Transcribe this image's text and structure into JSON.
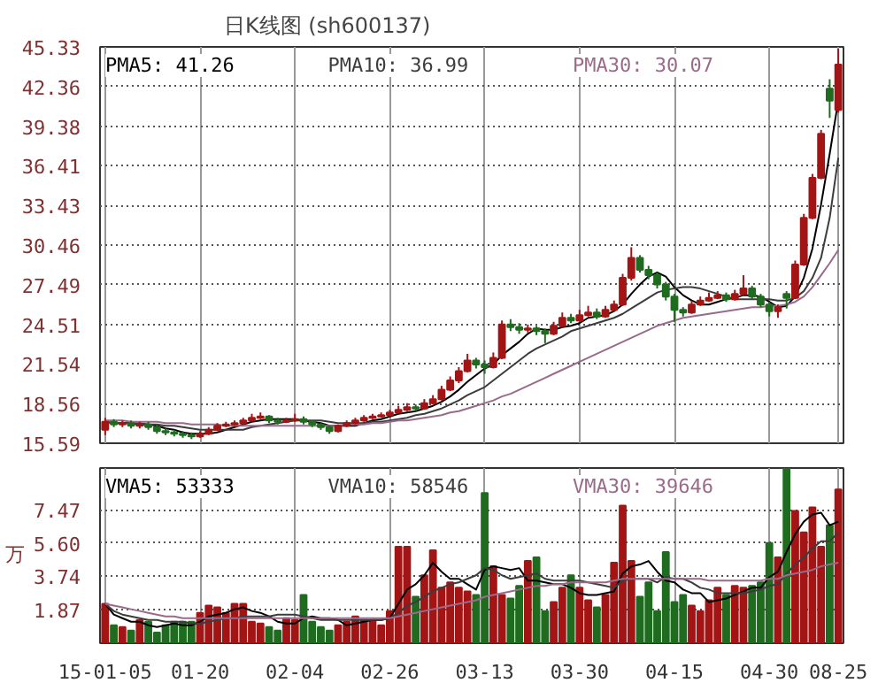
{
  "chart_data": [
    {
      "type": "candlestick",
      "title": "日K线图 (sh600137)",
      "tick_labels": "y",
      "grid": true,
      "categories": [
        null,
        null,
        null,
        null,
        null,
        null,
        null,
        null,
        null,
        null,
        null,
        null,
        null,
        null,
        null,
        null,
        null,
        null,
        null,
        null,
        null,
        null,
        null,
        null,
        null,
        null,
        null,
        null,
        null,
        null,
        null,
        null,
        null,
        null,
        null,
        null,
        null,
        null,
        null,
        null,
        null,
        null,
        null,
        null,
        null,
        null,
        null,
        null,
        null,
        null,
        null,
        null,
        null,
        null,
        null,
        null,
        null,
        null,
        null,
        null,
        null,
        null,
        null,
        null,
        null,
        null,
        null,
        null,
        null,
        null,
        null,
        null,
        null,
        null,
        null,
        null,
        null,
        null,
        null,
        null,
        null,
        null,
        null,
        null,
        null,
        null
      ],
      "ylim": [
        15.59,
        45.33
      ],
      "yticks": [
        15.59,
        18.56,
        21.54,
        24.51,
        27.49,
        {
          "value": 30.46,
          "label": "30.46"
        },
        33.43,
        36.41,
        39.38,
        42.36,
        45.33
      ],
      "annotations": [
        "PMA5: 41.26",
        "PMA10: 36.99",
        "PMA30: 30.07"
      ],
      "ohlc": [
        [
          16.6,
          17.5,
          16.2,
          17.2
        ],
        [
          17.2,
          17.4,
          16.8,
          17.0
        ],
        [
          17.0,
          17.3,
          16.8,
          17.1
        ],
        [
          17.1,
          17.3,
          16.7,
          16.9
        ],
        [
          16.9,
          17.2,
          16.7,
          17.0
        ],
        [
          17.0,
          17.2,
          16.6,
          16.8
        ],
        [
          16.8,
          17.0,
          16.3,
          16.5
        ],
        [
          16.5,
          16.7,
          16.2,
          16.4
        ],
        [
          16.4,
          16.6,
          16.1,
          16.3
        ],
        [
          16.3,
          16.5,
          16.0,
          16.2
        ],
        [
          16.2,
          16.4,
          15.9,
          16.1
        ],
        [
          16.1,
          16.5,
          16.0,
          16.3
        ],
        [
          16.3,
          16.8,
          16.2,
          16.6
        ],
        [
          16.6,
          17.1,
          16.5,
          16.9
        ],
        [
          16.9,
          17.2,
          16.8,
          17.0
        ],
        [
          17.0,
          17.3,
          16.9,
          17.1
        ],
        [
          17.1,
          17.5,
          17.0,
          17.3
        ],
        [
          17.3,
          17.8,
          17.2,
          17.5
        ],
        [
          17.5,
          17.9,
          17.4,
          17.6
        ],
        [
          17.6,
          17.7,
          17.1,
          17.3
        ],
        [
          17.3,
          17.5,
          17.0,
          17.2
        ],
        [
          17.2,
          17.5,
          17.1,
          17.3
        ],
        [
          17.3,
          17.8,
          17.2,
          17.4
        ],
        [
          17.4,
          17.6,
          17.0,
          17.2
        ],
        [
          17.2,
          17.3,
          16.8,
          17.0
        ],
        [
          17.0,
          17.1,
          16.6,
          16.8
        ],
        [
          16.8,
          16.9,
          16.3,
          16.5
        ],
        [
          16.5,
          17.0,
          16.4,
          16.9
        ],
        [
          16.9,
          17.3,
          16.8,
          17.1
        ],
        [
          17.1,
          17.5,
          17.0,
          17.3
        ],
        [
          17.3,
          17.7,
          17.2,
          17.5
        ],
        [
          17.5,
          17.8,
          17.4,
          17.6
        ],
        [
          17.6,
          17.9,
          17.5,
          17.7
        ],
        [
          17.7,
          18.1,
          17.6,
          17.9
        ],
        [
          17.9,
          18.4,
          17.8,
          18.1
        ],
        [
          18.1,
          18.6,
          18.0,
          18.3
        ],
        [
          18.3,
          18.5,
          18.0,
          18.2
        ],
        [
          18.2,
          18.9,
          18.1,
          18.6
        ],
        [
          18.6,
          19.2,
          18.5,
          18.9
        ],
        [
          18.9,
          19.9,
          18.8,
          19.6
        ],
        [
          19.6,
          20.6,
          19.5,
          20.3
        ],
        [
          20.3,
          21.3,
          20.1,
          21.0
        ],
        [
          21.0,
          22.3,
          20.9,
          21.8
        ],
        [
          21.8,
          22.0,
          21.2,
          21.5
        ],
        [
          21.5,
          21.8,
          20.8,
          21.3
        ],
        [
          21.3,
          22.4,
          21.2,
          22.0
        ],
        [
          22.0,
          24.8,
          21.9,
          24.5
        ],
        [
          24.5,
          24.9,
          24.0,
          24.3
        ],
        [
          24.3,
          24.6,
          23.8,
          24.1
        ],
        [
          24.1,
          24.5,
          23.9,
          24.2
        ],
        [
          24.2,
          24.4,
          23.7,
          24.0
        ],
        [
          24.0,
          24.2,
          23.1,
          23.8
        ],
        [
          23.8,
          24.7,
          23.7,
          24.4
        ],
        [
          24.4,
          25.4,
          24.3,
          25.0
        ],
        [
          25.0,
          25.3,
          24.6,
          24.8
        ],
        [
          24.8,
          25.6,
          24.7,
          25.2
        ],
        [
          25.2,
          25.9,
          25.1,
          25.4
        ],
        [
          25.4,
          25.7,
          24.9,
          25.1
        ],
        [
          25.1,
          25.9,
          25.0,
          25.6
        ],
        [
          25.6,
          26.3,
          25.5,
          26.0
        ],
        [
          26.0,
          28.3,
          25.9,
          28.0
        ],
        [
          28.0,
          30.3,
          27.8,
          29.5
        ],
        [
          29.5,
          29.7,
          28.4,
          28.6
        ],
        [
          28.6,
          28.9,
          27.9,
          28.2
        ],
        [
          28.2,
          28.4,
          27.2,
          27.5
        ],
        [
          27.5,
          27.7,
          26.3,
          26.6
        ],
        [
          26.6,
          26.8,
          24.7,
          25.6
        ],
        [
          25.6,
          25.8,
          25.1,
          25.4
        ],
        [
          25.4,
          26.3,
          25.3,
          26.0
        ],
        [
          26.0,
          26.6,
          25.9,
          26.3
        ],
        [
          26.3,
          26.9,
          26.2,
          26.5
        ],
        [
          26.5,
          27.0,
          26.4,
          26.7
        ],
        [
          26.7,
          26.9,
          26.2,
          26.4
        ],
        [
          26.4,
          27.1,
          26.3,
          26.8
        ],
        [
          26.8,
          28.2,
          26.7,
          27.2
        ],
        [
          27.2,
          27.4,
          26.4,
          26.6
        ],
        [
          26.6,
          26.8,
          25.8,
          26.0
        ],
        [
          26.0,
          26.2,
          25.1,
          25.5
        ],
        [
          25.5,
          26.0,
          25.0,
          25.8
        ],
        [
          26.8,
          27.0,
          25.7,
          26.5
        ],
        [
          26.5,
          29.3,
          26.4,
          29.0
        ],
        [
          29.0,
          32.8,
          28.9,
          32.5
        ],
        [
          32.5,
          35.8,
          32.4,
          35.5
        ],
        [
          35.5,
          39.1,
          35.4,
          38.8
        ],
        [
          42.2,
          42.9,
          40.0,
          41.3
        ],
        [
          40.6,
          45.2,
          40.4,
          44.0
        ]
      ],
      "colors": [
        "#a31515",
        "#1f6b1f",
        "#a31515",
        "#1f6b1f",
        "#a31515",
        "#1f6b1f",
        "#1f6b1f",
        "#1f6b1f",
        "#1f6b1f",
        "#1f6b1f",
        "#1f6b1f",
        "#a31515",
        "#a31515",
        "#a31515",
        "#a31515",
        "#a31515",
        "#a31515",
        "#a31515",
        "#a31515",
        "#1f6b1f",
        "#1f6b1f",
        "#a31515",
        "#a31515",
        "#1f6b1f",
        "#1f6b1f",
        "#1f6b1f",
        "#1f6b1f",
        "#a31515",
        "#a31515",
        "#a31515",
        "#a31515",
        "#a31515",
        "#a31515",
        "#a31515",
        "#a31515",
        "#a31515",
        "#1f6b1f",
        "#a31515",
        "#a31515",
        "#a31515",
        "#a31515",
        "#a31515",
        "#a31515",
        "#1f6b1f",
        "#1f6b1f",
        "#a31515",
        "#a31515",
        "#1f6b1f",
        "#1f6b1f",
        "#a31515",
        "#1f6b1f",
        "#1f6b1f",
        "#a31515",
        "#a31515",
        "#1f6b1f",
        "#a31515",
        "#a31515",
        "#1f6b1f",
        "#a31515",
        "#a31515",
        "#a31515",
        "#a31515",
        "#1f6b1f",
        "#1f6b1f",
        "#1f6b1f",
        "#1f6b1f",
        "#1f6b1f",
        "#1f6b1f",
        "#a31515",
        "#a31515",
        "#a31515",
        "#a31515",
        "#1f6b1f",
        "#a31515",
        "#a31515",
        "#1f6b1f",
        "#1f6b1f",
        "#1f6b1f",
        "#a31515",
        "#1f6b1f",
        "#a31515",
        "#a31515",
        "#a31515",
        "#a31515",
        "#1f6b1f",
        "#a31515"
      ],
      "series": [
        {
          "type": "line",
          "color": "#000000",
          "values": [
            17.2,
            17.1,
            17.1,
            17.1,
            17.0,
            17.0,
            16.9,
            16.7,
            16.6,
            16.4,
            16.3,
            16.3,
            16.3,
            16.4,
            16.6,
            16.8,
            17.0,
            17.2,
            17.3,
            17.4,
            17.4,
            17.4,
            17.4,
            17.3,
            17.2,
            17.1,
            16.9,
            16.9,
            16.9,
            16.9,
            17.1,
            17.3,
            17.4,
            17.6,
            17.8,
            17.9,
            18.0,
            18.2,
            18.4,
            18.7,
            19.1,
            19.6,
            20.2,
            20.7,
            21.2,
            21.5,
            22.2,
            22.7,
            23.2,
            23.8,
            24.2,
            24.1,
            24.1,
            24.3,
            24.4,
            24.6,
            25.0,
            25.1,
            25.2,
            25.5,
            26.0,
            26.8,
            27.5,
            28.1,
            28.4,
            28.1,
            27.3,
            26.7,
            26.3,
            26.0,
            26.0,
            26.2,
            26.4,
            26.5,
            26.7,
            26.7,
            26.6,
            26.2,
            25.8,
            25.9,
            26.6,
            28.0,
            30.2,
            33.5,
            37.3,
            41.3
          ]
        },
        {
          "type": "line",
          "color": "#3c3c3c",
          "values": [
            17.2,
            17.1,
            17.1,
            17.1,
            17.1,
            17.0,
            17.0,
            16.9,
            16.9,
            16.8,
            16.7,
            16.6,
            16.6,
            16.6,
            16.6,
            16.6,
            16.6,
            16.8,
            16.9,
            17.0,
            17.1,
            17.2,
            17.3,
            17.3,
            17.3,
            17.3,
            17.2,
            17.1,
            17.1,
            17.1,
            17.1,
            17.2,
            17.2,
            17.3,
            17.4,
            17.5,
            17.7,
            17.8,
            18.0,
            18.2,
            18.5,
            18.8,
            19.2,
            19.5,
            19.8,
            20.3,
            20.8,
            21.3,
            21.8,
            22.3,
            22.7,
            23.0,
            23.3,
            23.6,
            24.0,
            24.2,
            24.4,
            24.6,
            24.8,
            25.0,
            25.3,
            25.7,
            26.1,
            26.5,
            26.9,
            27.1,
            27.2,
            27.3,
            27.3,
            27.2,
            27.0,
            26.8,
            26.6,
            26.4,
            26.4,
            26.4,
            26.4,
            26.4,
            26.3,
            26.3,
            26.5,
            27.0,
            28.0,
            29.5,
            32.5,
            37.0
          ]
        },
        {
          "type": "line",
          "color": "#9a6a8a",
          "values": [
            17.3,
            17.3,
            17.3,
            17.2,
            17.2,
            17.2,
            17.2,
            17.1,
            17.1,
            17.1,
            17.0,
            17.0,
            17.0,
            17.0,
            16.9,
            16.9,
            16.9,
            16.9,
            16.9,
            16.9,
            16.9,
            16.9,
            16.9,
            16.9,
            16.9,
            16.9,
            16.9,
            16.9,
            17.0,
            17.0,
            17.0,
            17.1,
            17.1,
            17.2,
            17.3,
            17.3,
            17.4,
            17.5,
            17.6,
            17.7,
            17.9,
            18.0,
            18.2,
            18.4,
            18.6,
            18.8,
            19.1,
            19.3,
            19.6,
            19.9,
            20.2,
            20.5,
            20.8,
            21.1,
            21.4,
            21.7,
            22.0,
            22.3,
            22.6,
            22.9,
            23.2,
            23.5,
            23.8,
            24.1,
            24.4,
            24.6,
            24.8,
            25.0,
            25.1,
            25.2,
            25.3,
            25.4,
            25.5,
            25.6,
            25.7,
            25.8,
            25.8,
            25.9,
            25.9,
            26.0,
            26.2,
            26.6,
            27.3,
            28.2,
            29.1,
            30.1
          ]
        }
      ]
    },
    {
      "type": "bar",
      "grid": true,
      "ylabel": "万",
      "categories": [
        "15-01-05",
        null,
        null,
        null,
        null,
        null,
        null,
        null,
        null,
        null,
        null,
        "01-20",
        null,
        null,
        null,
        null,
        null,
        null,
        null,
        null,
        null,
        null,
        "02-04",
        null,
        null,
        null,
        null,
        null,
        null,
        null,
        null,
        null,
        null,
        "02-26",
        null,
        null,
        null,
        null,
        null,
        null,
        null,
        null,
        null,
        null,
        "03-13",
        null,
        null,
        null,
        null,
        null,
        null,
        null,
        null,
        null,
        null,
        "03-30",
        null,
        null,
        null,
        null,
        null,
        null,
        null,
        null,
        null,
        null,
        "04-15",
        null,
        null,
        null,
        null,
        null,
        null,
        null,
        null,
        null,
        null,
        "04-30",
        null,
        null,
        null,
        null,
        null,
        null,
        null,
        "08-25"
      ],
      "ylim": [
        0,
        9.8
      ],
      "yticks": [
        1.87,
        3.74,
        {
          "value": 5.6,
          "label": "5.60"
        },
        7.47
      ],
      "annotations": [
        "VMA5: 53333",
        "VMA10: 58546",
        "VMA30: 39646"
      ],
      "series": [
        {
          "type": "bar",
          "colors": [
            "#a31515",
            "#1f6b1f",
            "#a31515",
            "#1f6b1f",
            "#a31515",
            "#1f6b1f",
            "#1f6b1f",
            "#1f6b1f",
            "#1f6b1f",
            "#1f6b1f",
            "#1f6b1f",
            "#a31515",
            "#a31515",
            "#a31515",
            "#a31515",
            "#a31515",
            "#a31515",
            "#a31515",
            "#a31515",
            "#1f6b1f",
            "#1f6b1f",
            "#a31515",
            "#a31515",
            "#1f6b1f",
            "#1f6b1f",
            "#1f6b1f",
            "#1f6b1f",
            "#a31515",
            "#a31515",
            "#a31515",
            "#a31515",
            "#a31515",
            "#a31515",
            "#a31515",
            "#a31515",
            "#a31515",
            "#1f6b1f",
            "#a31515",
            "#a31515",
            "#a31515",
            "#a31515",
            "#a31515",
            "#a31515",
            "#1f6b1f",
            "#1f6b1f",
            "#a31515",
            "#a31515",
            "#1f6b1f",
            "#1f6b1f",
            "#a31515",
            "#1f6b1f",
            "#1f6b1f",
            "#a31515",
            "#a31515",
            "#1f6b1f",
            "#a31515",
            "#a31515",
            "#1f6b1f",
            "#a31515",
            "#a31515",
            "#a31515",
            "#a31515",
            "#1f6b1f",
            "#1f6b1f",
            "#1f6b1f",
            "#1f6b1f",
            "#1f6b1f",
            "#1f6b1f",
            "#a31515",
            "#a31515",
            "#a31515",
            "#a31515",
            "#1f6b1f",
            "#a31515",
            "#a31515",
            "#1f6b1f",
            "#1f6b1f",
            "#1f6b1f",
            "#a31515",
            "#1f6b1f",
            "#a31515",
            "#a31515",
            "#a31515",
            "#a31515",
            "#1f6b1f",
            "#a31515"
          ],
          "values": [
            2.2,
            1.0,
            0.9,
            0.7,
            1.3,
            1.2,
            0.6,
            1.0,
            1.2,
            1.2,
            1.2,
            1.7,
            2.1,
            2.0,
            1.7,
            2.2,
            2.2,
            1.2,
            1.1,
            0.9,
            0.7,
            1.4,
            1.3,
            2.7,
            1.2,
            0.9,
            0.7,
            1.0,
            1.2,
            1.5,
            1.3,
            1.3,
            1.0,
            1.8,
            5.4,
            5.4,
            2.6,
            3.8,
            5.2,
            3.1,
            3.4,
            3.1,
            2.9,
            2.7,
            8.4,
            4.3,
            2.7,
            2.5,
            3.2,
            4.6,
            4.8,
            1.8,
            2.3,
            3.1,
            3.8,
            3.1,
            2.4,
            2.0,
            2.7,
            4.5,
            7.7,
            4.6,
            2.6,
            3.4,
            1.8,
            5.1,
            2.3,
            2.7,
            2.1,
            1.8,
            2.4,
            3.1,
            2.7,
            3.2,
            3.1,
            3.2,
            3.4,
            5.6,
            4.8,
            9.8,
            7.4,
            6.2,
            7.6,
            5.4,
            6.6,
            8.6
          ]
        },
        {
          "type": "line",
          "color": "#000000",
          "values": [
            2.2,
            1.6,
            1.4,
            1.2,
            1.2,
            1.0,
            0.9,
            1.0,
            1.1,
            1.0,
            1.0,
            1.2,
            1.5,
            1.6,
            1.7,
            1.9,
            2.0,
            1.8,
            1.7,
            1.5,
            1.2,
            1.1,
            1.1,
            1.4,
            1.5,
            1.4,
            1.4,
            1.3,
            1.0,
            1.1,
            1.2,
            1.3,
            1.3,
            1.4,
            2.2,
            3.0,
            3.3,
            3.8,
            4.5,
            4.0,
            3.6,
            3.6,
            3.3,
            3.0,
            4.1,
            4.3,
            4.2,
            4.1,
            4.2,
            3.5,
            3.5,
            3.4,
            3.3,
            3.3,
            3.1,
            2.8,
            2.7,
            2.7,
            2.8,
            2.9,
            3.9,
            4.3,
            4.4,
            4.6,
            4.0,
            3.5,
            3.4,
            3.0,
            2.8,
            2.8,
            2.3,
            2.4,
            2.5,
            2.7,
            2.9,
            3.1,
            3.1,
            3.7,
            4.0,
            5.1,
            6.1,
            6.8,
            7.2,
            7.3,
            6.6,
            6.8
          ]
        },
        {
          "type": "line",
          "color": "#3c3c3c",
          "values": [
            2.2,
            1.8,
            1.6,
            1.5,
            1.4,
            1.3,
            1.3,
            1.2,
            1.2,
            1.2,
            1.1,
            1.1,
            1.2,
            1.3,
            1.4,
            1.4,
            1.5,
            1.5,
            1.5,
            1.5,
            1.6,
            1.6,
            1.6,
            1.5,
            1.4,
            1.3,
            1.3,
            1.3,
            1.3,
            1.3,
            1.3,
            1.3,
            1.3,
            1.4,
            1.7,
            2.1,
            2.3,
            2.6,
            2.9,
            3.1,
            3.3,
            3.4,
            3.6,
            3.8,
            4.2,
            4.1,
            3.8,
            3.6,
            3.7,
            3.8,
            3.9,
            3.6,
            3.5,
            3.5,
            3.5,
            3.5,
            3.4,
            3.3,
            3.2,
            3.1,
            3.5,
            3.6,
            3.6,
            3.6,
            3.4,
            3.7,
            3.6,
            3.6,
            3.4,
            3.1,
            3.0,
            2.8,
            2.8,
            2.8,
            2.8,
            2.9,
            3.0,
            3.2,
            3.3,
            3.9,
            4.4,
            4.8,
            5.3,
            5.7,
            5.7,
            6.2
          ]
        },
        {
          "type": "line",
          "color": "#9a6a8a",
          "values": [
            2.2,
            2.1,
            2.0,
            1.9,
            1.8,
            1.7,
            1.6,
            1.5,
            1.5,
            1.4,
            1.4,
            1.4,
            1.4,
            1.4,
            1.4,
            1.4,
            1.4,
            1.4,
            1.4,
            1.4,
            1.4,
            1.4,
            1.4,
            1.4,
            1.4,
            1.4,
            1.4,
            1.4,
            1.4,
            1.4,
            1.4,
            1.4,
            1.4,
            1.4,
            1.5,
            1.6,
            1.7,
            1.8,
            1.9,
            2.0,
            2.1,
            2.2,
            2.3,
            2.4,
            2.6,
            2.7,
            2.8,
            2.9,
            3.0,
            3.1,
            3.2,
            3.2,
            3.3,
            3.3,
            3.4,
            3.4,
            3.4,
            3.4,
            3.4,
            3.5,
            3.6,
            3.6,
            3.6,
            3.6,
            3.6,
            3.6,
            3.6,
            3.6,
            3.6,
            3.6,
            3.5,
            3.5,
            3.5,
            3.5,
            3.5,
            3.5,
            3.5,
            3.6,
            3.6,
            3.8,
            3.9,
            4.0,
            4.1,
            4.3,
            4.4,
            4.5
          ]
        }
      ]
    }
  ]
}
